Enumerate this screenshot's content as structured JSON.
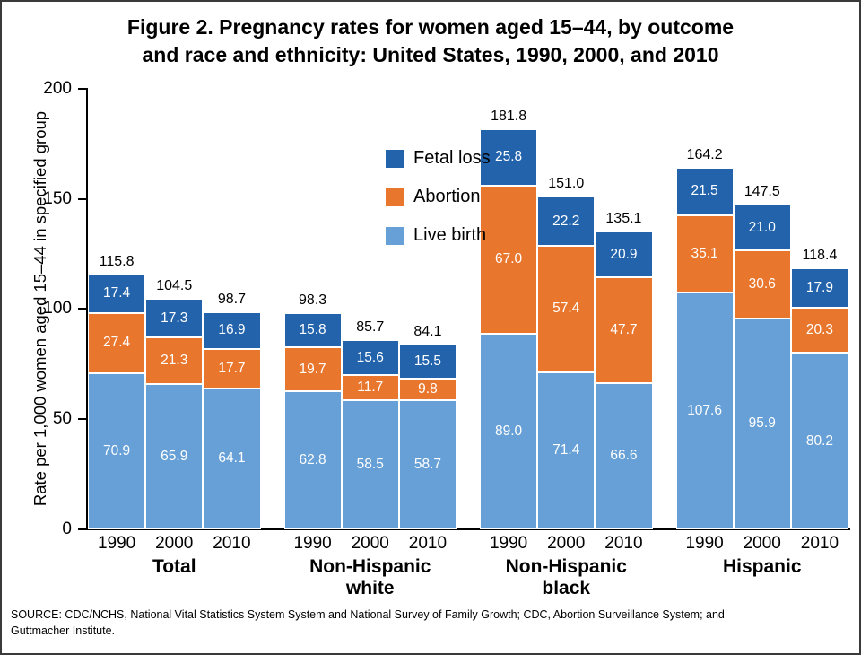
{
  "figure": {
    "title_line1": "Figure 2. Pregnancy rates for women aged 15–44, by outcome",
    "title_line2": "and race and ethnicity: United States, 1990, 2000, and 2010",
    "source_line1": "SOURCE: CDC/NCHS, National Vital Statistics System System and National Survey of Family Growth; CDC, Abortion Surveillance System; and",
    "source_line2": "Guttmacher Institute."
  },
  "y_axis": {
    "label": "Rate per 1,000 women aged 15–44 in specified group",
    "ticks_top_down": [
      "200",
      "150",
      "100",
      "50",
      "0"
    ]
  },
  "legend": {
    "items": [
      {
        "label": "Fetal loss",
        "key": "fetal_loss"
      },
      {
        "label": "Abortion",
        "key": "abortion"
      },
      {
        "label": "Live birth",
        "key": "live_birth"
      }
    ]
  },
  "chart_data": {
    "type": "bar",
    "stacked": true,
    "title": "Figure 2. Pregnancy rates for women aged 15–44, by outcome and race and ethnicity: United States, 1990, 2000, and 2010",
    "ylabel": "Rate per 1,000 women aged 15–44 in specified group",
    "ylim": [
      0,
      200
    ],
    "yticks": [
      0,
      50,
      100,
      150,
      200
    ],
    "grid": false,
    "legend_position": "upper-left-of-plot",
    "stack_order_bottom_up": [
      "live_birth",
      "abortion",
      "fetal_loss"
    ],
    "series_labels": {
      "live_birth": "Live birth",
      "abortion": "Abortion",
      "fetal_loss": "Fetal loss"
    },
    "colors": {
      "live_birth": "#67A0D6",
      "abortion": "#E8762C",
      "fetal_loss": "#2263AC"
    },
    "groups": [
      {
        "id": "total",
        "label_lines": [
          "Total"
        ],
        "bars": [
          {
            "year": "1990",
            "live_birth": 70.9,
            "abortion": 27.4,
            "fetal_loss": 17.4,
            "total": 115.8
          },
          {
            "year": "2000",
            "live_birth": 65.9,
            "abortion": 21.3,
            "fetal_loss": 17.3,
            "total": 104.5
          },
          {
            "year": "2010",
            "live_birth": 64.1,
            "abortion": 17.7,
            "fetal_loss": 16.9,
            "total": 98.7
          }
        ]
      },
      {
        "id": "nh-white",
        "label_lines": [
          "Non-Hispanic",
          "white"
        ],
        "bars": [
          {
            "year": "1990",
            "live_birth": 62.8,
            "abortion": 19.7,
            "fetal_loss": 15.8,
            "total": 98.3
          },
          {
            "year": "2000",
            "live_birth": 58.5,
            "abortion": 11.7,
            "fetal_loss": 15.6,
            "total": 85.7
          },
          {
            "year": "2010",
            "live_birth": 58.7,
            "abortion": 9.8,
            "fetal_loss": 15.5,
            "total": 84.1
          }
        ]
      },
      {
        "id": "nh-black",
        "label_lines": [
          "Non-Hispanic",
          "black"
        ],
        "bars": [
          {
            "year": "1990",
            "live_birth": 89.0,
            "abortion": 67.0,
            "fetal_loss": 25.8,
            "total": 181.8
          },
          {
            "year": "2000",
            "live_birth": 71.4,
            "abortion": 57.4,
            "fetal_loss": 22.2,
            "total": 151.0
          },
          {
            "year": "2010",
            "live_birth": 66.6,
            "abortion": 47.7,
            "fetal_loss": 20.9,
            "total": 135.1
          }
        ]
      },
      {
        "id": "hispanic",
        "label_lines": [
          "Hispanic"
        ],
        "bars": [
          {
            "year": "1990",
            "live_birth": 107.6,
            "abortion": 35.1,
            "fetal_loss": 21.5,
            "total": 164.2
          },
          {
            "year": "2000",
            "live_birth": 95.9,
            "abortion": 30.6,
            "fetal_loss": 21.0,
            "total": 147.5
          },
          {
            "year": "2010",
            "live_birth": 80.2,
            "abortion": 20.3,
            "fetal_loss": 17.9,
            "total": 118.4
          }
        ]
      }
    ]
  }
}
